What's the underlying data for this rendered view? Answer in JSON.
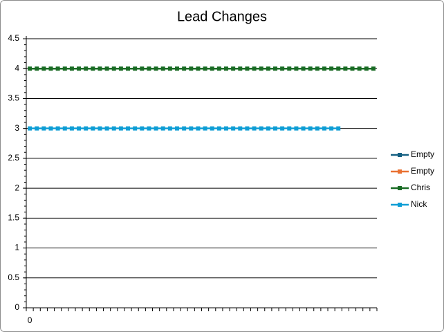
{
  "chart_data": {
    "type": "line",
    "title": "Lead Changes",
    "categories": [
      "0",
      null,
      null,
      null,
      null,
      null,
      null,
      null,
      null,
      null,
      null,
      null,
      null,
      null,
      null,
      null,
      null,
      null,
      null,
      null,
      null,
      null,
      null,
      null,
      null,
      null,
      null,
      null,
      null,
      null,
      null,
      null,
      null,
      null,
      null,
      null,
      null,
      null,
      null,
      null,
      null,
      null,
      null,
      null,
      null,
      null,
      null,
      null,
      null,
      null
    ],
    "series": [
      {
        "name": "Empty",
        "color": "#156082",
        "values": [
          null,
          null,
          null,
          null,
          null,
          null,
          null,
          null,
          null,
          null,
          null,
          null,
          null,
          null,
          null,
          null,
          null,
          null,
          null,
          null,
          null,
          null,
          null,
          null,
          null,
          null,
          null,
          null,
          null,
          null,
          null,
          null,
          null,
          null,
          null,
          null,
          null,
          null,
          null,
          null,
          null,
          null,
          null,
          null,
          null,
          null,
          null,
          null,
          null,
          null
        ]
      },
      {
        "name": "Empty",
        "color": "#e97132",
        "values": [
          null,
          null,
          null,
          null,
          null,
          null,
          null,
          null,
          null,
          null,
          null,
          null,
          null,
          null,
          null,
          null,
          null,
          null,
          null,
          null,
          null,
          null,
          null,
          null,
          null,
          null,
          null,
          null,
          null,
          null,
          null,
          null,
          null,
          null,
          null,
          null,
          null,
          null,
          null,
          null,
          null,
          null,
          null,
          null,
          null,
          null,
          null,
          null,
          null,
          null
        ]
      },
      {
        "name": "Chris",
        "color": "#196b24",
        "values": [
          4,
          4,
          4,
          4,
          4,
          4,
          4,
          4,
          4,
          4,
          4,
          4,
          4,
          4,
          4,
          4,
          4,
          4,
          4,
          4,
          4,
          4,
          4,
          4,
          4,
          4,
          4,
          4,
          4,
          4,
          4,
          4,
          4,
          4,
          4,
          4,
          4,
          4,
          4,
          4,
          4,
          4,
          4,
          4,
          4,
          4,
          4,
          4,
          4,
          4
        ]
      },
      {
        "name": "Nick",
        "color": "#0f9ed5",
        "values": [
          3,
          3,
          3,
          3,
          3,
          3,
          3,
          3,
          3,
          3,
          3,
          3,
          3,
          3,
          3,
          3,
          3,
          3,
          3,
          3,
          3,
          3,
          3,
          3,
          3,
          3,
          3,
          3,
          3,
          3,
          3,
          3,
          3,
          3,
          3,
          3,
          3,
          3,
          3,
          3,
          3,
          3,
          3,
          3,
          3,
          null,
          null,
          null,
          null,
          null
        ]
      }
    ],
    "ylim": [
      0,
      4.5
    ],
    "yticks": [
      0,
      0.5,
      1,
      1.5,
      2,
      2.5,
      3,
      3.5,
      4,
      4.5
    ],
    "grid": true,
    "legend": "right"
  }
}
